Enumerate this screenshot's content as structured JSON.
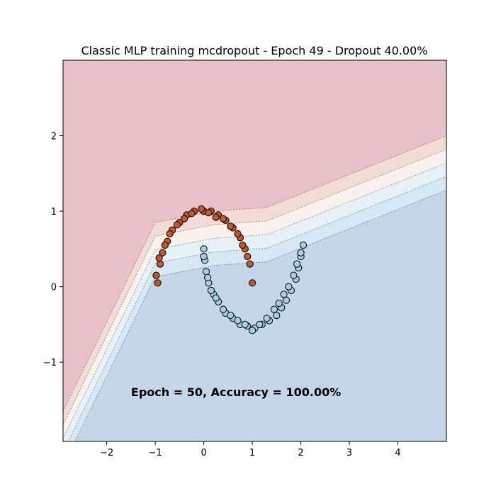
{
  "chart_data": {
    "type": "scatter",
    "title": "Classic MLP training mcdropout - Epoch 49  - Dropout 40.00%",
    "annotation": "Epoch = 50, Accuracy = 100.00%",
    "annotation_anchor": {
      "x": -1.5,
      "y": -1.45
    },
    "xlim": [
      -2.9,
      5.0
    ],
    "ylim": [
      -2.05,
      3.0
    ],
    "xticks": [
      -2,
      -1,
      0,
      1,
      2,
      3,
      4
    ],
    "yticks": [
      -1,
      0,
      1,
      2
    ],
    "grid": false,
    "background_regions": {
      "top_left_class_color": "#e8c2c8",
      "bottom_right_class_color": "#c4d6e8",
      "contour_band_colors": [
        "#e8c2c8",
        "#f4dcd6",
        "#fbf2ee",
        "#e6f1f8",
        "#d5e8f3",
        "#c4d6e8"
      ],
      "boundary_path": [
        [
          -2.9,
          -1.6
        ],
        [
          -1.0,
          0.9
        ],
        [
          0.2,
          1.05
        ],
        [
          1.3,
          1.1
        ],
        [
          5.0,
          2.05
        ]
      ]
    },
    "series": [
      {
        "class": "upper_moon",
        "color": "#c1572a",
        "description_shape": "arc centered at (0,0), radius 1, from 0 to 180 degrees",
        "x": [
          -0.95,
          -0.9,
          -0.85,
          -0.75,
          -0.65,
          -0.5,
          -0.35,
          -0.2,
          0.0,
          0.15,
          0.3,
          0.45,
          0.6,
          0.75,
          0.85,
          0.95,
          1.0,
          -0.98,
          -0.92,
          -0.8,
          -0.7,
          -0.55,
          -0.4,
          -0.25,
          -0.05,
          0.1,
          0.25,
          0.4,
          0.55,
          0.7,
          0.8,
          0.9
        ],
        "y": [
          0.05,
          0.3,
          0.45,
          0.6,
          0.75,
          0.85,
          0.95,
          1.0,
          1.0,
          1.0,
          0.95,
          0.88,
          0.78,
          0.65,
          0.5,
          0.3,
          0.05,
          0.15,
          0.38,
          0.55,
          0.7,
          0.82,
          0.9,
          0.97,
          1.03,
          0.98,
          0.92,
          0.9,
          0.8,
          0.7,
          0.55,
          0.4
        ]
      },
      {
        "class": "lower_moon",
        "color": "#a6cee3",
        "description_shape": "arc centered at (1,0.5), radius 1, from 180 to 360 degrees",
        "x": [
          0.0,
          0.02,
          0.05,
          0.1,
          0.2,
          0.3,
          0.45,
          0.6,
          0.75,
          0.9,
          1.05,
          1.2,
          1.35,
          1.5,
          1.6,
          1.7,
          1.8,
          1.9,
          1.95,
          2.0,
          2.05,
          0.0,
          0.08,
          0.15,
          0.25,
          0.4,
          0.55,
          0.7,
          0.85,
          1.0,
          1.15,
          1.3,
          1.45,
          1.55,
          1.65,
          1.75,
          1.85,
          1.92,
          2.0
        ],
        "y": [
          0.5,
          0.35,
          0.2,
          0.05,
          -0.1,
          -0.2,
          -0.35,
          -0.42,
          -0.5,
          -0.52,
          -0.55,
          -0.5,
          -0.45,
          -0.38,
          -0.28,
          -0.18,
          -0.05,
          0.1,
          0.25,
          0.4,
          0.55,
          0.4,
          0.12,
          -0.05,
          -0.15,
          -0.3,
          -0.38,
          -0.45,
          -0.5,
          -0.58,
          -0.5,
          -0.42,
          -0.3,
          -0.22,
          -0.1,
          0.0,
          0.15,
          0.3,
          0.45
        ]
      }
    ]
  }
}
